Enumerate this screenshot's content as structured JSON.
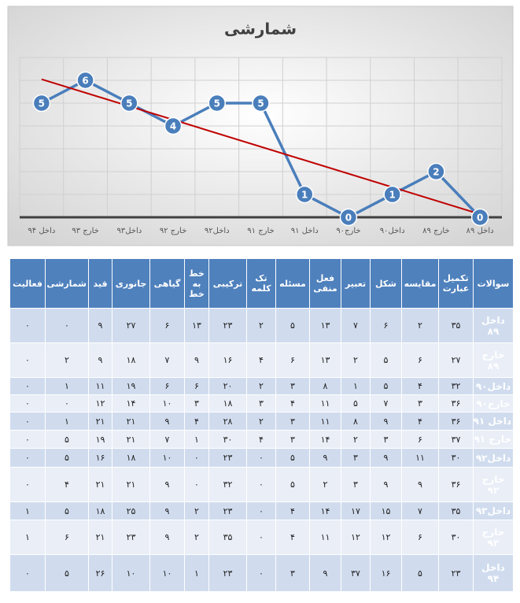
{
  "chart_data": {
    "type": "line",
    "title": "شمارشی",
    "categories": [
      "داخل ۹۴",
      "خارج ۹۳",
      "داخل۹۳",
      "خارج ۹۲",
      "داخل۹۲",
      "خارج ۹۱",
      "داخل ۹۱",
      "خارج۹۰",
      "داخل۹۰",
      "خارج ۸۹",
      "داخل ۸۹"
    ],
    "values": [
      5,
      6,
      5,
      4,
      5,
      5,
      1,
      0,
      1,
      2,
      0
    ],
    "color": "#4a7ebb",
    "ylim": [
      0,
      7
    ],
    "yticks": [
      0,
      1,
      2,
      3,
      4,
      5,
      6,
      7
    ],
    "grid": true,
    "trendline": {
      "color": "#c00000"
    }
  },
  "table": {
    "header": [
      "سوالات",
      "تکمیل عبارت",
      "مقایسه",
      "شکل",
      "تعبیر",
      "فعل منفی",
      "مسئله",
      "تک کلمه",
      "ترکیبی",
      "خط به خط",
      "گیاهی",
      "جانوری",
      "قید",
      "شمارشی",
      "فعالیت"
    ],
    "rows": [
      [
        "داخل ۸۹",
        "۳۵",
        "۲",
        "۶",
        "۷",
        "۱۳",
        "۵",
        "۲",
        "۲۳",
        "۱۳",
        "۶",
        "۲۷",
        "۹",
        "۰",
        "۰"
      ],
      [
        "خارج ۸۹",
        "۲۷",
        "۶",
        "۵",
        "۲",
        "۱۳",
        "۶",
        "۴",
        "۱۶",
        "۹",
        "۷",
        "۱۸",
        "۹",
        "۲",
        "۰"
      ],
      [
        "داخل۹۰",
        "۳۲",
        "۴",
        "۵",
        "۱",
        "۸",
        "۳",
        "۲",
        "۲۰",
        "۶",
        "۶",
        "۱۹",
        "۱۱",
        "۱",
        "۰"
      ],
      [
        "خارج۹۰",
        "۳۶",
        "۳",
        "۷",
        "۵",
        "۱۱",
        "۴",
        "۳",
        "۱۸",
        "۳",
        "۱۰",
        "۱۴",
        "۱۲",
        "۰",
        "۰"
      ],
      [
        "داخل ۹۱",
        "۳۶",
        "۴",
        "۹",
        "۸",
        "۱۱",
        "۳",
        "۲",
        "۲۸",
        "۴",
        "۹",
        "۲۱",
        "۲۱",
        "۱",
        "۰"
      ],
      [
        "خارج ۹۱",
        "۳۷",
        "۶",
        "۳",
        "۲",
        "۱۴",
        "۳",
        "۴",
        "۳۰",
        "۱",
        "۷",
        "۲۱",
        "۱۹",
        "۵",
        "۰"
      ],
      [
        "داخل۹۲",
        "۳۰",
        "۱۱",
        "۹",
        "۳",
        "۹",
        "۵",
        "۰",
        "۲۳",
        "۰",
        "۱۰",
        "۱۸",
        "۱۶",
        "۵",
        "۰"
      ],
      [
        "خارج ۹۲",
        "۳۶",
        "۹",
        "۹",
        "۳",
        "۲",
        "۵",
        "۰",
        "۳۲",
        "۰",
        "۹",
        "۲۱",
        "۲۱",
        "۴",
        "۰"
      ],
      [
        "داخل۹۳",
        "۳۵",
        "۷",
        "۱۵",
        "۱۷",
        "۱۴",
        "۴",
        "۰",
        "۲۳",
        "۲",
        "۹",
        "۲۵",
        "۱۸",
        "۵",
        "۱"
      ],
      [
        "خارج ۹۳",
        "۳۰",
        "۶",
        "۱۲",
        "۱۲",
        "۱۱",
        "۴",
        "۰",
        "۳۵",
        "۲",
        "۹",
        "۲۳",
        "۲۱",
        "۶",
        "۱"
      ],
      [
        "داخل ۹۴",
        "۲۳",
        "۵",
        "۱۶",
        "۳۷",
        "۹",
        "۳",
        "۰",
        "۲۳",
        "۱",
        "۱۰",
        "۱۰",
        "۲۶",
        "۵",
        "۰"
      ]
    ]
  }
}
